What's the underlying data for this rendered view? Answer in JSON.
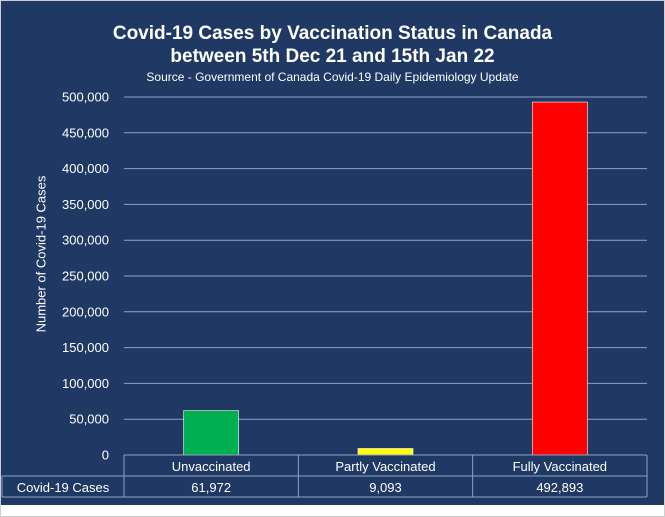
{
  "chart_data": {
    "type": "bar",
    "title_line1": "Covid-19 Cases by Vaccination Status in Canada",
    "title_line2": "between 5th Dec 21 and 15th Jan 22",
    "subtitle": "Source - Government of Canada Covid-19 Daily Epidemiology Update",
    "ylabel": "Number of Covid-19 Cases",
    "ylim": [
      0,
      500000
    ],
    "ytick_step": 50000,
    "categories": [
      "Unvaccinated",
      "Partly Vaccinated",
      "Fully Vaccinated"
    ],
    "series": [
      {
        "name": "Covid-19 Cases",
        "values": [
          61972,
          9093,
          492893
        ],
        "value_labels": [
          "61,972",
          "9,093",
          "492,893"
        ],
        "colors": [
          "#00b050",
          "#ffff00",
          "#ff0000"
        ]
      }
    ],
    "grid": true,
    "data_table": true
  },
  "colors": {
    "background": "#1f3864",
    "gridline": "#8da2c8",
    "table_border": "#8da2c8"
  }
}
